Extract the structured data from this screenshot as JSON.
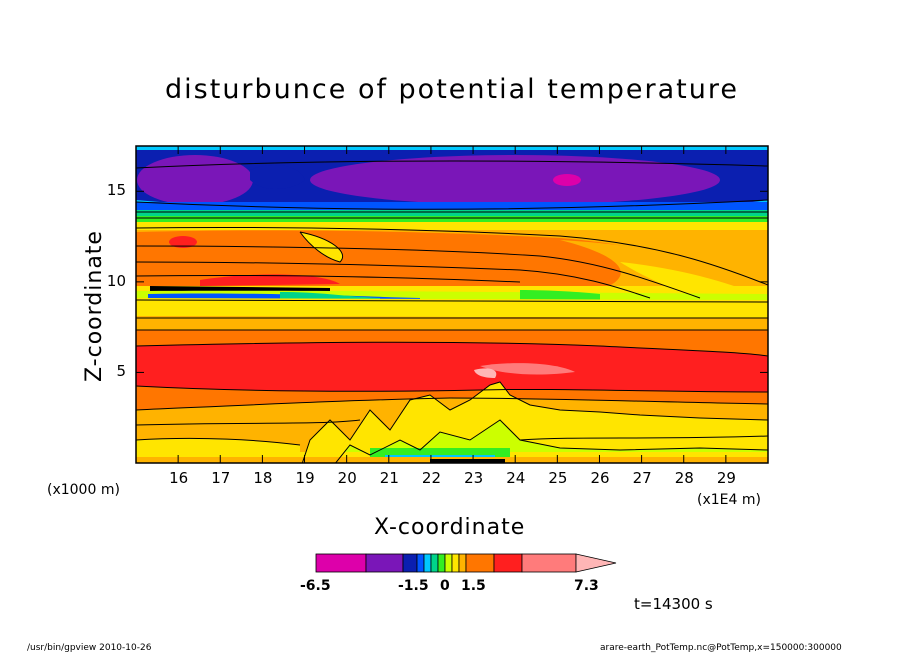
{
  "chart_data": {
    "type": "heatmap",
    "title": "disturbunce of potential temperature",
    "xlabel": "X-coordinate",
    "ylabel": "Z-coordinate",
    "x_unit": "(x1E4 m)",
    "y_unit": "(x1000 m)",
    "x_ticks": [
      "16",
      "17",
      "18",
      "19",
      "20",
      "21",
      "22",
      "23",
      "24",
      "25",
      "26",
      "27",
      "28",
      "29"
    ],
    "y_ticks": [
      "5",
      "10",
      "15"
    ],
    "xlim": [
      15,
      30
    ],
    "ylim": [
      0,
      17.5
    ],
    "colorbar": {
      "tick_labels": [
        "-6.5",
        "-1.5",
        "0",
        "1.5",
        "7.3"
      ],
      "colors": [
        "#dd00aa",
        "#7a16b8",
        "#0b1fb0",
        "#0055ff",
        "#00c8ff",
        "#00d48a",
        "#33ee22",
        "#ccff00",
        "#ffe500",
        "#ffb300",
        "#ff7600",
        "#ff1f1f",
        "#ff7b7b",
        "#ffb6b6"
      ]
    },
    "annotation": "t=14300 s"
  },
  "footer": {
    "left": "/usr/bin/gpview  2010-10-26",
    "right": "arare-earth_PotTemp.nc@PotTemp,x=150000:300000"
  }
}
